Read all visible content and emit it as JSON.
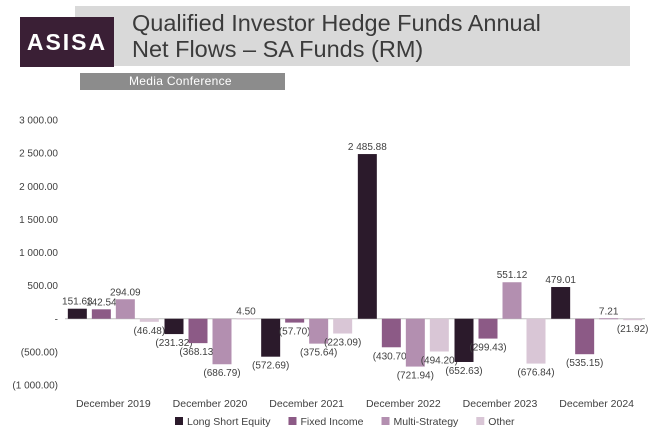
{
  "header": {
    "logo_text": "ASISA",
    "title": "Qualified Investor Hedge Funds Annual\nNet Flows – SA Funds (RM)",
    "subtitle": "Media Conference"
  },
  "chart_data": {
    "type": "bar",
    "categories": [
      "December 2019",
      "December 2020",
      "December 2021",
      "December 2022",
      "December 2023",
      "December 2024"
    ],
    "series": [
      {
        "name": "Long Short Equity",
        "color": "#2b1a2b",
        "values": [
          151.63,
          -231.32,
          -572.69,
          2485.88,
          -652.63,
          479.01
        ],
        "labels": [
          "151.63",
          "(231.32)",
          "(572.69)",
          "2 485.88",
          "(652.63)",
          "479.01"
        ]
      },
      {
        "name": "Fixed Income",
        "color": "#8c5a86",
        "values": [
          142.54,
          -368.13,
          -57.7,
          -430.7,
          -299.43,
          -535.15
        ],
        "labels": [
          "142.54",
          "(368.13)",
          "(57.70)",
          "(430.70)",
          "(299.43)",
          "(535.15)"
        ]
      },
      {
        "name": "Multi-Strategy",
        "color": "#b38fb0",
        "values": [
          294.09,
          -686.79,
          -375.64,
          -721.94,
          551.12,
          7.21
        ],
        "labels": [
          "294.09",
          "(686.79)",
          "(375.64)",
          "(721.94)",
          "551.12",
          "7.21"
        ]
      },
      {
        "name": "Other",
        "color": "#d9c6d6",
        "values": [
          -46.48,
          4.5,
          -223.09,
          -494.2,
          -676.84,
          -21.92
        ],
        "labels": [
          "(46.48)",
          "4.50",
          "(223.09)",
          "(494.20)",
          "(676.84)",
          "(21.92)"
        ]
      }
    ],
    "ylim": [
      -1000,
      3000
    ],
    "yticks": [
      3000,
      2500,
      2000,
      1500,
      1000,
      500,
      0,
      -500,
      -1000
    ],
    "ytick_labels": [
      "3 000.00",
      "2 500.00",
      "2 000.00",
      "1 500.00",
      "1 000.00",
      "500.00",
      "-",
      "(500.00)",
      "(1 000.00)"
    ],
    "grid": false,
    "legend": "bottom"
  }
}
